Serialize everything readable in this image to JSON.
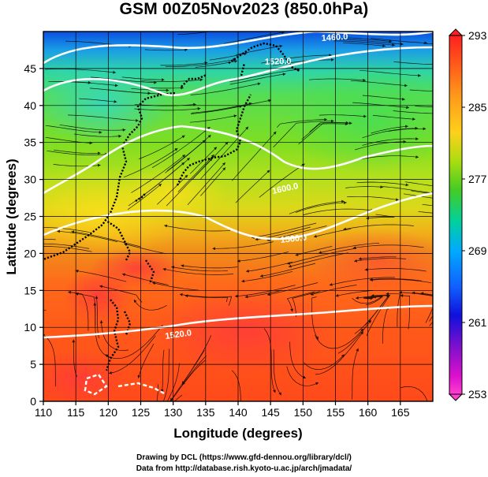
{
  "title": "GSM 00Z05Nov2023 (850.0hPa)",
  "credits": {
    "line1": "Drawing by DCL (https://www.gfd-dennou.org/library/dcl/)",
    "line2": "Data from http://database.rish.kyoto-u.ac.jp/arch/jmadata/"
  },
  "map": {
    "variable": "temperature (K) with geopotential height contours and wind streamlines",
    "x_axis": {
      "label": "Longitude (degrees)",
      "range": [
        110,
        170
      ],
      "ticks": [
        "110",
        "115",
        "120",
        "125",
        "130",
        "135",
        "140",
        "145",
        "150",
        "155",
        "160",
        "165"
      ]
    },
    "y_axis": {
      "label": "Latitude  (degrees)",
      "range": [
        0,
        50
      ],
      "ticks": [
        "0",
        "5",
        "10",
        "15",
        "20",
        "25",
        "30",
        "35",
        "40",
        "45"
      ]
    },
    "contours": [
      {
        "value": "1460.0"
      },
      {
        "value": "1520.0"
      },
      {
        "value": "1600.0"
      },
      {
        "value": "1560.0"
      },
      {
        "value": "1520.0"
      }
    ],
    "colorbar": {
      "range": [
        253,
        293
      ],
      "ticks": [
        "293",
        "285",
        "277",
        "269",
        "261",
        "253"
      ],
      "colors": [
        "#ff1a1a",
        "#ff6600",
        "#ffcc00",
        "#66dd00",
        "#00cc33",
        "#00ccff",
        "#0066ff",
        "#0000cc",
        "#cc00cc",
        "#ff33cc"
      ]
    }
  }
}
